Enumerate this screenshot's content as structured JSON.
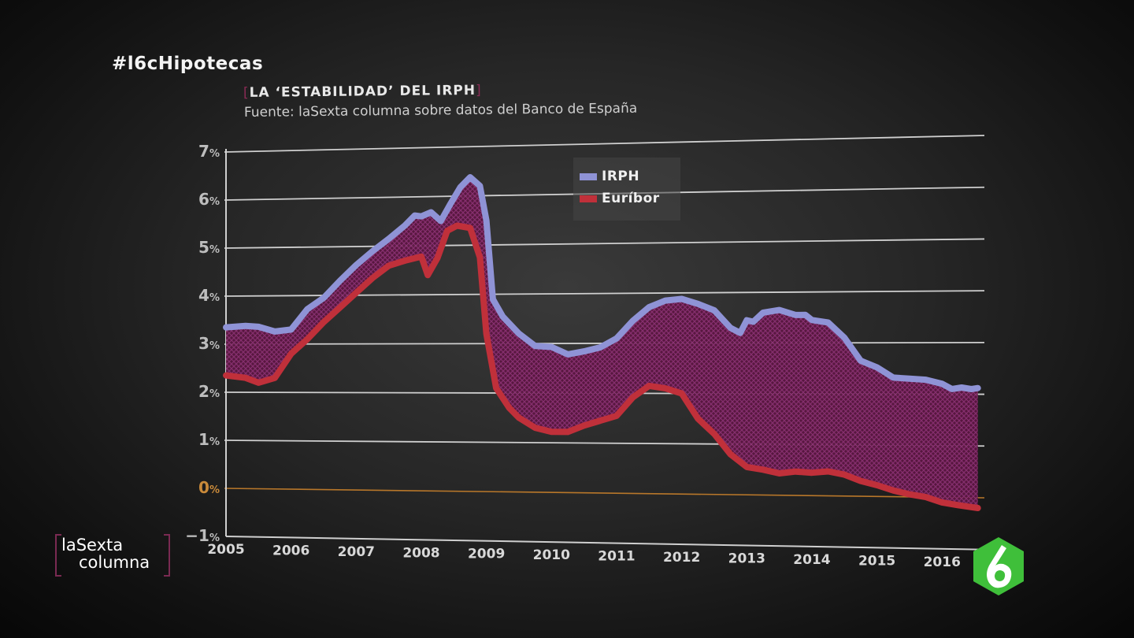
{
  "hashtag": "#l6cHipotecas",
  "chart_data": {
    "type": "area",
    "title": "LA ‘ESTABILIDAD’ DEL IRPH",
    "subtitle": "Fuente: laSexta columna sobre datos del Banco de España",
    "xlabel": "",
    "ylabel": "",
    "y_ticks": [
      -1,
      0,
      1,
      2,
      3,
      4,
      5,
      6,
      7
    ],
    "y_tick_labels": [
      "−1",
      "0",
      "1",
      "2",
      "3",
      "4",
      "5",
      "6",
      "7"
    ],
    "y_unit": "%",
    "ylim": [
      -1,
      7
    ],
    "xlim": [
      2005,
      2016.65
    ],
    "x_tick_labels": [
      "2005",
      "2006",
      "2007",
      "2008",
      "2009",
      "2010",
      "2011",
      "2012",
      "2013",
      "2014",
      "2015",
      "2016"
    ],
    "grid": true,
    "legend": "top-center",
    "series": [
      {
        "name": "IRPH",
        "color": "#8f93d6",
        "x": [
          2005.0,
          2005.3,
          2005.5,
          2005.75,
          2006.0,
          2006.25,
          2006.5,
          2006.75,
          2007.0,
          2007.25,
          2007.5,
          2007.75,
          2007.9,
          2008.0,
          2008.15,
          2008.3,
          2008.45,
          2008.6,
          2008.75,
          2008.9,
          2009.0,
          2009.1,
          2009.25,
          2009.5,
          2009.75,
          2010.0,
          2010.25,
          2010.5,
          2010.75,
          2011.0,
          2011.25,
          2011.5,
          2011.75,
          2012.0,
          2012.25,
          2012.5,
          2012.75,
          2012.9,
          2013.0,
          2013.1,
          2013.25,
          2013.5,
          2013.75,
          2013.9,
          2014.0,
          2014.25,
          2014.5,
          2014.75,
          2015.0,
          2015.25,
          2015.5,
          2015.75,
          2016.0,
          2016.15,
          2016.3,
          2016.45,
          2016.55
        ],
        "values": [
          3.35,
          3.38,
          3.36,
          3.26,
          3.3,
          3.72,
          3.95,
          4.3,
          4.62,
          4.9,
          5.15,
          5.42,
          5.62,
          5.6,
          5.68,
          5.5,
          5.85,
          6.18,
          6.38,
          6.2,
          5.5,
          3.9,
          3.55,
          3.2,
          2.95,
          2.93,
          2.78,
          2.84,
          2.92,
          3.1,
          3.45,
          3.72,
          3.85,
          3.88,
          3.78,
          3.65,
          3.3,
          3.2,
          3.45,
          3.42,
          3.6,
          3.65,
          3.55,
          3.55,
          3.45,
          3.4,
          3.1,
          2.65,
          2.52,
          2.32,
          2.3,
          2.28,
          2.2,
          2.1,
          2.13,
          2.1,
          2.12
        ]
      },
      {
        "name": "Euríbor",
        "color": "#c0303a",
        "x": [
          2005.0,
          2005.3,
          2005.5,
          2005.75,
          2006.0,
          2006.25,
          2006.5,
          2006.75,
          2007.0,
          2007.25,
          2007.5,
          2007.75,
          2008.0,
          2008.1,
          2008.25,
          2008.4,
          2008.55,
          2008.75,
          2008.9,
          2009.0,
          2009.15,
          2009.35,
          2009.5,
          2009.75,
          2010.0,
          2010.25,
          2010.5,
          2010.75,
          2011.0,
          2011.25,
          2011.5,
          2011.75,
          2012.0,
          2012.25,
          2012.5,
          2012.75,
          2013.0,
          2013.25,
          2013.5,
          2013.75,
          2014.0,
          2014.25,
          2014.5,
          2014.75,
          2015.0,
          2015.25,
          2015.5,
          2015.75,
          2016.0,
          2016.25,
          2016.55
        ],
        "values": [
          2.35,
          2.3,
          2.2,
          2.3,
          2.8,
          3.1,
          3.45,
          3.75,
          4.05,
          4.35,
          4.6,
          4.7,
          4.78,
          4.4,
          4.75,
          5.3,
          5.4,
          5.35,
          4.75,
          3.2,
          2.1,
          1.7,
          1.5,
          1.3,
          1.22,
          1.22,
          1.35,
          1.45,
          1.55,
          1.92,
          2.15,
          2.1,
          2.0,
          1.5,
          1.2,
          0.8,
          0.55,
          0.5,
          0.43,
          0.47,
          0.45,
          0.48,
          0.42,
          0.3,
          0.22,
          0.12,
          0.05,
          0.0,
          -0.1,
          -0.15,
          -0.2
        ]
      }
    ]
  },
  "legend": {
    "items": [
      {
        "label": "IRPH",
        "color": "#8f93d6"
      },
      {
        "label": "Euríbor",
        "color": "#c0303a"
      }
    ]
  },
  "branding": {
    "program_line1": "laSexta",
    "program_line2": "columna"
  }
}
